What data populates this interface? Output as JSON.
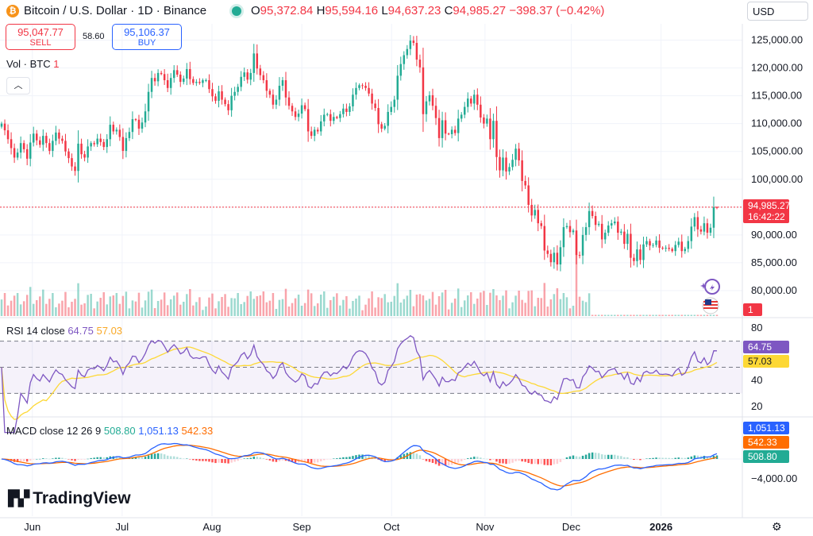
{
  "header": {
    "title": "Bitcoin / U.S. Dollar · 1D · Binance",
    "o_label": "O",
    "o_val": "95,372.84",
    "h_label": "H",
    "h_val": "95,594.16",
    "l_label": "L",
    "l_val": "94,637.23",
    "c_label": "C",
    "c_val": "94,985.27",
    "change": "−398.37 (−0.42%)"
  },
  "trade": {
    "sell_price": "95,047.77",
    "sell_label": "SELL",
    "spread": "58.60",
    "buy_price": "95,106.37",
    "buy_label": "BUY"
  },
  "volume_label": {
    "name": "Vol · BTC",
    "value": "1"
  },
  "currency": "USD",
  "rsi_label": {
    "name": "RSI 14 close",
    "rsi": "64.75",
    "ma": "57.03"
  },
  "macd_label": {
    "name": "MACD close 12 26 9",
    "hist": "508.80",
    "macd": "1,051.13",
    "signal": "542.33"
  },
  "brand": "TradingView",
  "badges": {
    "price": "94,985.27",
    "countdown": "16:42:22",
    "vol": "1",
    "rsi": "64.75",
    "rsi_ma": "57.03",
    "macd": "1,051.13",
    "signal": "542.33",
    "hist": "508.80"
  },
  "colors": {
    "up": "#22ab94",
    "down": "#f23645",
    "rsi_line": "#7e57c2",
    "rsi_ma": "#fdd835",
    "macd_line": "#2962ff",
    "signal_line": "#ff6d00",
    "price_line": "#f23645"
  },
  "chart_data": [
    {
      "type": "candlestick",
      "title": "Bitcoin / U.S. Dollar · 1D · Binance",
      "price_ticks": [
        125000,
        120000,
        115000,
        110000,
        105000,
        100000,
        95000,
        90000,
        85000,
        80000
      ],
      "price_tick_labels": [
        "125,000.00",
        "120,000.00",
        "115,000.00",
        "110,000.00",
        "105,000.00",
        "100,000.00",
        "",
        "90,000.00",
        "85,000.00",
        "80,000.00"
      ],
      "ylim": [
        78000,
        126500
      ],
      "x_labels": [
        "Jun",
        "Jul",
        "Aug",
        "Sep",
        "Oct",
        "Nov",
        "Dec",
        "2026"
      ],
      "closes": [
        110000,
        108800,
        107200,
        105600,
        103900,
        104800,
        106500,
        105400,
        103700,
        106600,
        108200,
        107000,
        106200,
        107800,
        106500,
        105100,
        106900,
        108400,
        107300,
        106900,
        105000,
        103800,
        102300,
        101500,
        106400,
        104500,
        103900,
        105900,
        106500,
        106300,
        107300,
        106700,
        105800,
        107200,
        109800,
        108600,
        108900,
        107600,
        105100,
        107400,
        108500,
        110800,
        110700,
        109100,
        110200,
        112200,
        115700,
        118200,
        117600,
        119100,
        118900,
        117800,
        116400,
        118200,
        119600,
        118800,
        117500,
        118100,
        119800,
        118000,
        117300,
        117500,
        117300,
        117800,
        117800,
        116200,
        114900,
        114100,
        115800,
        114300,
        113500,
        112400,
        115000,
        115700,
        116600,
        118400,
        119200,
        117900,
        119100,
        122600,
        119900,
        118700,
        117800,
        115900,
        115200,
        113400,
        114300,
        116800,
        117800,
        114700,
        113200,
        112200,
        111200,
        111800,
        113300,
        112600,
        108600,
        107800,
        108900,
        108600,
        110400,
        111600,
        111700,
        110500,
        111200,
        111000,
        111700,
        112700,
        112100,
        113100,
        115200,
        116400,
        116900,
        116800,
        116400,
        115400,
        113600,
        112800,
        109900,
        109100,
        109600,
        112100,
        113000,
        114300,
        118600,
        120700,
        122300,
        123400,
        124900,
        124500,
        121500,
        120100,
        111700,
        114000,
        115100,
        113200,
        111000,
        107400,
        110600,
        108200,
        108100,
        108900,
        108300,
        110900,
        111600,
        113000,
        114500,
        113600,
        115200,
        113400,
        111100,
        110000,
        110900,
        107200,
        110500,
        104000,
        101600,
        103900,
        101400,
        102200,
        103500,
        105500,
        103400,
        99700,
        98900,
        95400,
        93500,
        94500,
        92100,
        91600,
        87200,
        86600,
        85100,
        86800,
        84700,
        87800,
        91400,
        91600,
        90500,
        90800,
        86400,
        86300,
        90000,
        91400,
        94300,
        93400,
        91800,
        92000,
        89200,
        90400,
        91700,
        92100,
        92400,
        90400,
        90600,
        88400,
        90200,
        85900,
        85300,
        87400,
        85500,
        88300,
        88900,
        88100,
        88200,
        89000,
        87700,
        87600,
        87700,
        87500,
        87100,
        88200,
        88800,
        87100,
        87500,
        88900,
        91500,
        93200,
        91000,
        90600,
        92100,
        90400,
        91300,
        95000,
        94985.27
      ]
    },
    {
      "type": "line",
      "title": "RSI 14 close",
      "levels": [
        70,
        50,
        30
      ],
      "ticks": [
        80,
        40,
        20
      ],
      "ylim": [
        15,
        85
      ],
      "last": {
        "rsi": 64.75,
        "ma": 57.03
      }
    },
    {
      "type": "line+bar",
      "title": "MACD close 12 26 9",
      "ticks": [
        -4000
      ],
      "last": {
        "macd": 1051.13,
        "signal": 542.33,
        "hist": 508.8
      }
    }
  ]
}
